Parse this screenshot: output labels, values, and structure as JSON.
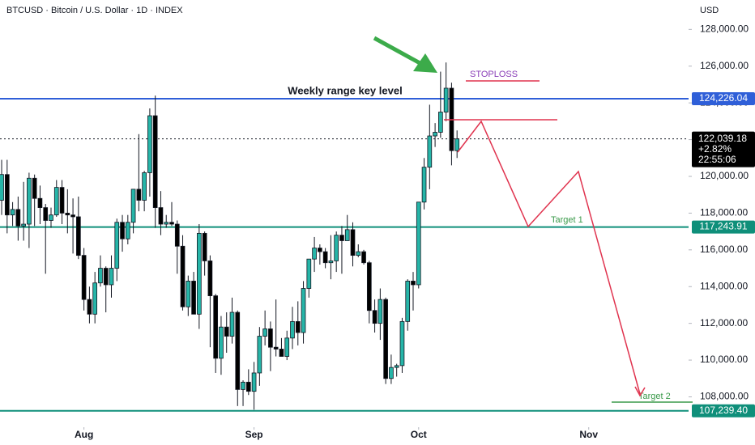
{
  "header": {
    "symbol": "BTCUSD · Bitcoin / U.S. Dollar · 1D · INDEX",
    "currency": "USD"
  },
  "chart_data": {
    "type": "candlestick",
    "open": [
      118700,
      120100,
      117900,
      118200,
      117300,
      117400,
      119900,
      118800,
      118300,
      117600,
      117900,
      119400,
      118000,
      117900,
      117800,
      115700,
      113300,
      112500,
      114200,
      115000,
      114100,
      115000,
      117500,
      116600,
      117500,
      119300,
      118700,
      120200,
      123300,
      118300,
      117400,
      117500,
      117400,
      116200,
      112900,
      114300,
      112500,
      116900,
      115400,
      113500,
      110100,
      111800,
      111300,
      112600,
      108400,
      108800,
      108300,
      109300,
      111300,
      111700,
      110700,
      110600,
      110200,
      111200,
      112100,
      111500,
      113900,
      115500,
      116100,
      115900,
      115300,
      115400,
      116800,
      116500,
      117100,
      115700,
      115900,
      115300,
      112700,
      112000,
      113300,
      109000,
      109600,
      109700,
      112100,
      114300,
      114100,
      118600,
      120500,
      122200,
      122400,
      123500,
      124800,
      121400
    ],
    "high": [
      120900,
      120900,
      118600,
      118900,
      119700,
      120200,
      120100,
      119500,
      118500,
      118300,
      119800,
      119800,
      119300,
      118800,
      118900,
      116100,
      114000,
      114800,
      115700,
      115100,
      115700,
      117700,
      117900,
      117900,
      119300,
      122300,
      120300,
      123700,
      124400,
      119200,
      117900,
      118600,
      117600,
      116800,
      114600,
      114800,
      117400,
      117000,
      115700,
      113600,
      112400,
      112600,
      113400,
      112700,
      108900,
      109500,
      109900,
      111800,
      112700,
      112100,
      113300,
      111200,
      111600,
      112900,
      113200,
      114300,
      115500,
      116700,
      116300,
      116100,
      116800,
      117000,
      117300,
      117900,
      117500,
      116300,
      116000,
      115400,
      113300,
      113900,
      113400,
      110300,
      109800,
      112300,
      114400,
      114800,
      118600,
      121000,
      123900,
      122900,
      125700,
      126200,
      125100,
      122500
    ],
    "low": [
      117900,
      116900,
      117300,
      116500,
      116500,
      116100,
      117300,
      117400,
      114700,
      117200,
      117800,
      117400,
      116900,
      115800,
      115500,
      112700,
      112000,
      112000,
      114000,
      112600,
      113400,
      114300,
      115900,
      116300,
      116900,
      118100,
      118100,
      118900,
      117200,
      116800,
      117200,
      117300,
      114700,
      112700,
      112400,
      112600,
      111700,
      114600,
      110700,
      109300,
      109200,
      110400,
      110900,
      107500,
      107500,
      108100,
      107300,
      108600,
      110800,
      109400,
      110200,
      110200,
      110000,
      110600,
      110800,
      110900,
      113400,
      114800,
      115200,
      115000,
      114400,
      114800,
      114700,
      116500,
      115100,
      115600,
      115200,
      112000,
      111500,
      111100,
      108700,
      108700,
      109100,
      109300,
      111600,
      112700,
      113900,
      118200,
      119300,
      121600,
      122100,
      123000,
      120600,
      121000
    ],
    "close": [
      120100,
      117900,
      118200,
      117300,
      117400,
      119900,
      118800,
      118300,
      117600,
      117900,
      119400,
      118000,
      117900,
      117800,
      115700,
      113300,
      112500,
      114200,
      115000,
      114100,
      115000,
      117500,
      116600,
      117500,
      119300,
      118700,
      120200,
      123300,
      118300,
      117400,
      117500,
      117400,
      116200,
      112900,
      114300,
      112500,
      116900,
      115400,
      113500,
      110100,
      111800,
      111300,
      112600,
      108400,
      108800,
      108300,
      109300,
      111300,
      111700,
      110700,
      110600,
      110200,
      111200,
      112100,
      111500,
      113900,
      115500,
      116100,
      115900,
      115300,
      115400,
      116800,
      116500,
      117100,
      115700,
      115900,
      115300,
      112700,
      112000,
      113300,
      109000,
      109600,
      109700,
      112100,
      114300,
      114100,
      118600,
      120500,
      122200,
      122400,
      123500,
      124800,
      121400,
      122039.18
    ],
    "up_color": "#26b5a8",
    "down_color": "#000000",
    "xlim": [
      -0.3,
      125.2
    ],
    "xticks": [
      {
        "value": 15,
        "label": "Aug"
      },
      {
        "value": 46,
        "label": "Sep"
      },
      {
        "value": 76,
        "label": "Oct"
      },
      {
        "value": 107,
        "label": "Nov"
      }
    ],
    "ylim": [
      106700,
      129600
    ],
    "yticks": [
      {
        "value": 108000,
        "label": "108,000.00"
      },
      {
        "value": 110000,
        "label": "110,000.00"
      },
      {
        "value": 112000,
        "label": "112,000.00"
      },
      {
        "value": 114000,
        "label": "114,000.00"
      },
      {
        "value": 116000,
        "label": "116,000.00"
      },
      {
        "value": 118000,
        "label": "118,000.00"
      },
      {
        "value": 120000,
        "label": "120,000.00"
      },
      {
        "value": 122000,
        "label": "122,000.00"
      },
      {
        "value": 124000,
        "label": "124,000.00"
      },
      {
        "value": 126000,
        "label": "126,000.00"
      },
      {
        "value": 128000,
        "label": "128,000.00"
      }
    ],
    "levels": [
      {
        "value": 124226.04,
        "label": "124,226.04",
        "color": "#2f5fd8"
      },
      {
        "value": 117243.91,
        "label": "117,243.91",
        "color": "#0f8f7a"
      },
      {
        "value": 107239.4,
        "label": "107,239.40",
        "color": "#0f8f7a"
      }
    ],
    "last_price": {
      "value": 122039.18,
      "label": "122,039.18"
    },
    "change": "+2.82%",
    "countdown": "22:55:06",
    "annotations": {
      "key_level": "Weekly range key level",
      "stoploss": "STOPLOSS",
      "target1": "Target 1",
      "target2": "Target 2"
    }
  }
}
